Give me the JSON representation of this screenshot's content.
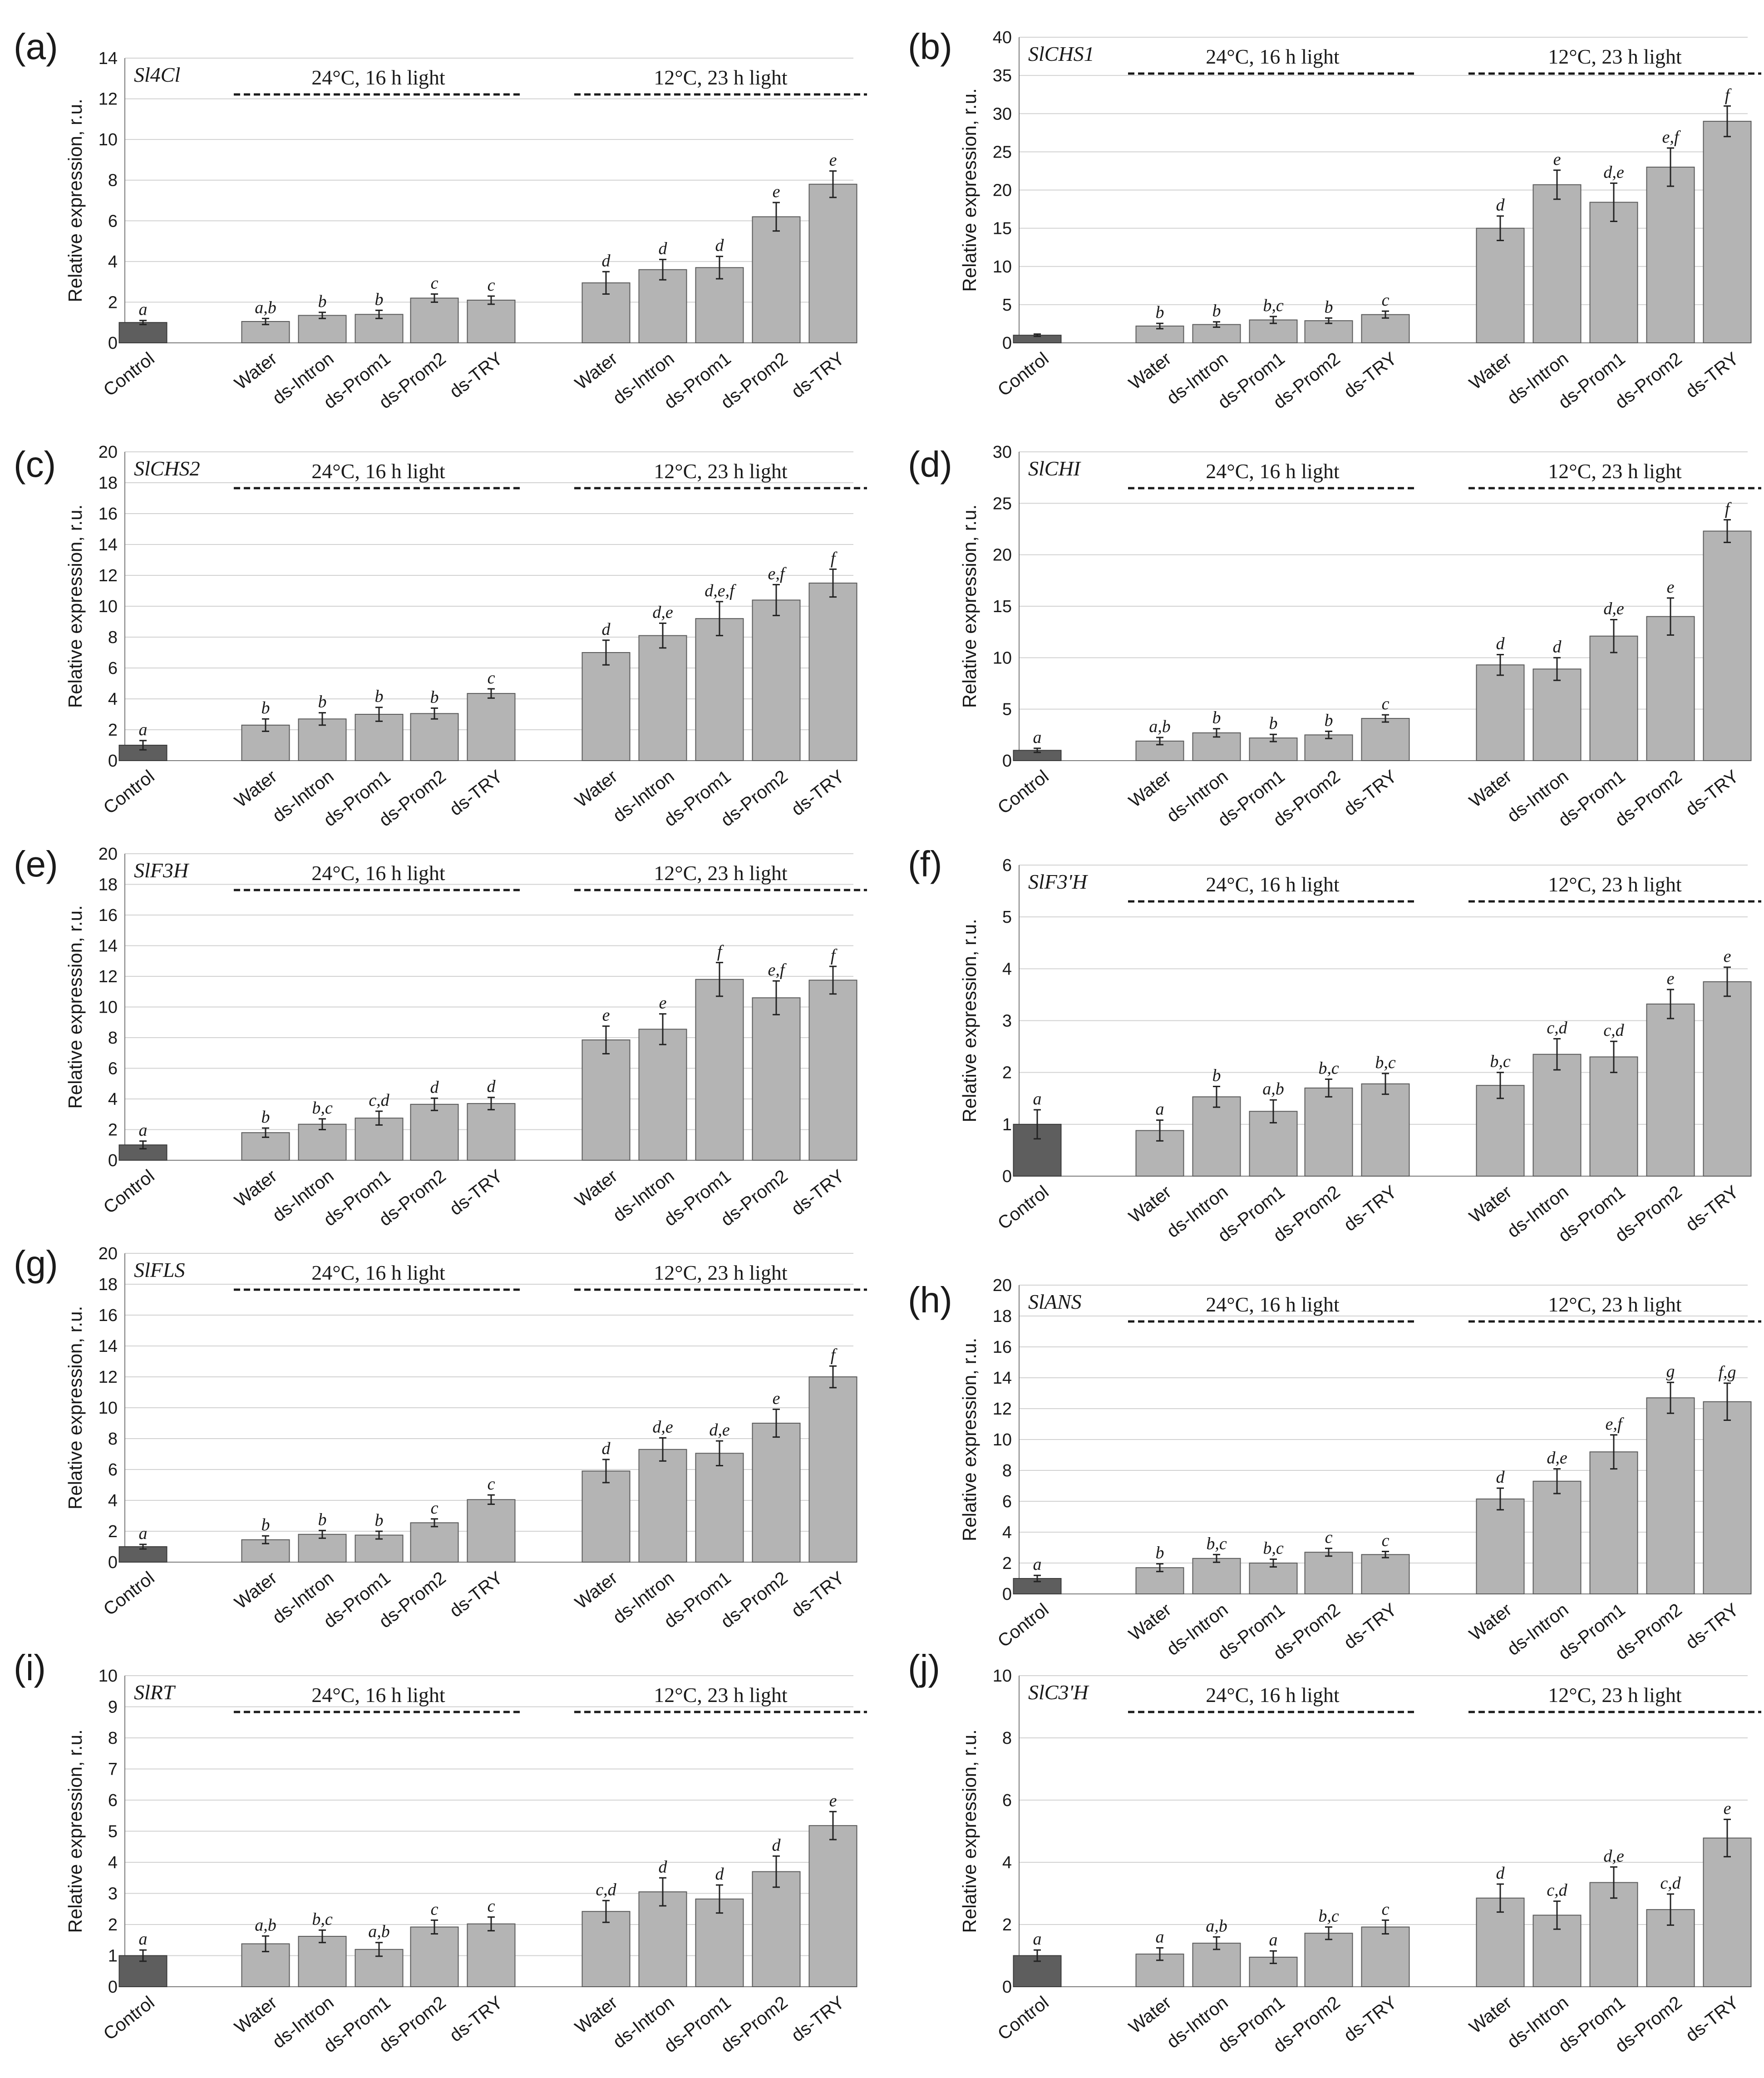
{
  "categories": [
    "Control",
    "Water",
    "ds-Intron",
    "ds-Prom1",
    "ds-Prom2",
    "ds-TRY",
    "Water",
    "ds-Intron",
    "ds-Prom1",
    "ds-Prom2",
    "ds-TRY"
  ],
  "conditions": [
    "24°C, 16 h light",
    "12°C, 23 h light"
  ],
  "ylabel": "Relative expression, r.u.",
  "chart_data": [
    {
      "type": "bar",
      "panel": "(a)",
      "gene": "Sl4Cl",
      "ylim": [
        0,
        14
      ],
      "yticks": [
        0,
        2,
        4,
        6,
        8,
        10,
        12,
        14
      ],
      "values": [
        1.0,
        1.05,
        1.35,
        1.4,
        2.2,
        2.1,
        2.95,
        3.6,
        3.7,
        6.2,
        7.8
      ],
      "errors": [
        0.1,
        0.15,
        0.15,
        0.2,
        0.2,
        0.2,
        0.55,
        0.5,
        0.55,
        0.7,
        0.65
      ],
      "letters": [
        "a",
        "a,b",
        "b",
        "b",
        "c",
        "c",
        "d",
        "d",
        "d",
        "e",
        "e"
      ]
    },
    {
      "type": "bar",
      "panel": "(b)",
      "gene": "SlCHS1",
      "ylim": [
        0,
        40
      ],
      "yticks": [
        0,
        5,
        10,
        15,
        20,
        25,
        30,
        35,
        40
      ],
      "values": [
        1.0,
        2.2,
        2.4,
        3.0,
        2.9,
        3.7,
        15.0,
        20.7,
        18.4,
        23.0,
        29.0
      ],
      "errors": [
        0.15,
        0.35,
        0.35,
        0.45,
        0.35,
        0.45,
        1.6,
        1.9,
        2.5,
        2.5,
        2.0
      ],
      "letters": [
        "",
        "b",
        "b",
        "b,c",
        "b",
        "c",
        "d",
        "e",
        "d,e",
        "e,f",
        "f"
      ]
    },
    {
      "type": "bar",
      "panel": "(c)",
      "gene": "SlCHS2",
      "ylim": [
        0,
        20
      ],
      "yticks": [
        0,
        2,
        4,
        6,
        8,
        10,
        12,
        14,
        16,
        18,
        20
      ],
      "values": [
        1.0,
        2.3,
        2.7,
        3.0,
        3.05,
        4.35,
        7.0,
        8.1,
        9.2,
        10.4,
        11.5
      ],
      "errors": [
        0.3,
        0.4,
        0.4,
        0.45,
        0.35,
        0.3,
        0.8,
        0.8,
        1.1,
        1.0,
        0.9
      ],
      "letters": [
        "a",
        "b",
        "b",
        "b",
        "b",
        "c",
        "d",
        "d,e",
        "d,e,f",
        "e,f",
        "f"
      ]
    },
    {
      "type": "bar",
      "panel": "(d)",
      "gene": "SlCHI",
      "ylim": [
        0,
        30
      ],
      "yticks": [
        0,
        5,
        10,
        15,
        20,
        25,
        30
      ],
      "values": [
        1.0,
        1.9,
        2.7,
        2.2,
        2.5,
        4.1,
        9.3,
        8.9,
        12.1,
        14.0,
        22.3
      ],
      "errors": [
        0.2,
        0.35,
        0.4,
        0.35,
        0.35,
        0.35,
        1.0,
        1.1,
        1.6,
        1.8,
        1.1
      ],
      "letters": [
        "a",
        "a,b",
        "b",
        "b",
        "b",
        "c",
        "d",
        "d",
        "d,e",
        "e",
        "f"
      ]
    },
    {
      "type": "bar",
      "panel": "(e)",
      "gene": "SlF3H",
      "ylim": [
        0,
        20
      ],
      "yticks": [
        0,
        2,
        4,
        6,
        8,
        10,
        12,
        14,
        16,
        18,
        20
      ],
      "values": [
        1.0,
        1.8,
        2.35,
        2.75,
        3.65,
        3.7,
        7.85,
        8.55,
        11.8,
        10.6,
        11.75
      ],
      "errors": [
        0.25,
        0.3,
        0.35,
        0.45,
        0.4,
        0.4,
        0.9,
        1.0,
        1.1,
        1.1,
        0.9
      ],
      "letters": [
        "a",
        "b",
        "b,c",
        "c,d",
        "d",
        "d",
        "e",
        "e",
        "f",
        "e,f",
        "f"
      ]
    },
    {
      "type": "bar",
      "panel": "(f)",
      "gene": "SlF3'H",
      "ylim": [
        0,
        6
      ],
      "yticks": [
        0,
        1,
        2,
        3,
        4,
        5,
        6
      ],
      "values": [
        1.0,
        0.88,
        1.53,
        1.25,
        1.7,
        1.78,
        1.75,
        2.35,
        2.3,
        3.32,
        3.75
      ],
      "errors": [
        0.28,
        0.2,
        0.2,
        0.22,
        0.17,
        0.2,
        0.25,
        0.3,
        0.3,
        0.28,
        0.28
      ],
      "letters": [
        "a",
        "a",
        "b",
        "a,b",
        "b,c",
        "b,c",
        "b,c",
        "c,d",
        "c,d",
        "e",
        "e"
      ]
    },
    {
      "type": "bar",
      "panel": "(g)",
      "gene": "SlFLS",
      "ylim": [
        0,
        20
      ],
      "yticks": [
        0,
        2,
        4,
        6,
        8,
        10,
        12,
        14,
        16,
        18,
        20
      ],
      "values": [
        1.0,
        1.45,
        1.8,
        1.75,
        2.55,
        4.05,
        5.9,
        7.3,
        7.05,
        9.0,
        12.0
      ],
      "errors": [
        0.15,
        0.25,
        0.25,
        0.25,
        0.25,
        0.3,
        0.75,
        0.75,
        0.8,
        0.9,
        0.7
      ],
      "letters": [
        "a",
        "b",
        "b",
        "b",
        "c",
        "c",
        "d",
        "d,e",
        "d,e",
        "e",
        "f"
      ]
    },
    {
      "type": "bar",
      "panel": "(h)",
      "gene": "SlANS",
      "ylim": [
        0,
        20
      ],
      "yticks": [
        0,
        2,
        4,
        6,
        8,
        10,
        12,
        14,
        16,
        18,
        20
      ],
      "values": [
        1.0,
        1.7,
        2.3,
        2.0,
        2.7,
        2.55,
        6.15,
        7.3,
        9.2,
        12.7,
        12.45
      ],
      "errors": [
        0.2,
        0.25,
        0.25,
        0.25,
        0.25,
        0.2,
        0.7,
        0.8,
        1.1,
        1.0,
        1.2
      ],
      "letters": [
        "a",
        "b",
        "b,c",
        "b,c",
        "c",
        "c",
        "d",
        "d,e",
        "e,f",
        "g",
        "f,g"
      ]
    },
    {
      "type": "bar",
      "panel": "(i)",
      "gene": "SlRT",
      "ylim": [
        0,
        10
      ],
      "yticks": [
        0,
        1,
        2,
        3,
        4,
        5,
        6,
        7,
        8,
        9,
        10
      ],
      "values": [
        1.0,
        1.38,
        1.62,
        1.2,
        1.92,
        2.02,
        2.42,
        3.05,
        2.82,
        3.7,
        5.18
      ],
      "errors": [
        0.18,
        0.25,
        0.2,
        0.22,
        0.22,
        0.22,
        0.35,
        0.45,
        0.45,
        0.5,
        0.45
      ],
      "letters": [
        "a",
        "a,b",
        "b,c",
        "a,b",
        "c",
        "c",
        "c,d",
        "d",
        "d",
        "d",
        "e"
      ]
    },
    {
      "type": "bar",
      "panel": "(j)",
      "gene": "SlC3'H",
      "ylim": [
        0,
        10
      ],
      "yticks": [
        0,
        2,
        4,
        6,
        8,
        10
      ],
      "values": [
        1.0,
        1.05,
        1.4,
        0.95,
        1.72,
        1.92,
        2.85,
        2.3,
        3.35,
        2.48,
        4.78
      ],
      "errors": [
        0.18,
        0.2,
        0.2,
        0.2,
        0.2,
        0.22,
        0.45,
        0.45,
        0.5,
        0.5,
        0.6
      ],
      "letters": [
        "a",
        "a",
        "a,b",
        "a",
        "b,c",
        "c",
        "d",
        "c,d",
        "d,e",
        "c,d",
        "e"
      ]
    }
  ]
}
